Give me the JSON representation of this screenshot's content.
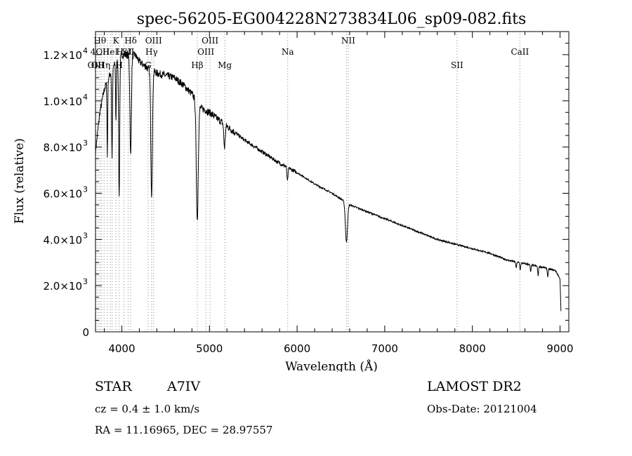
{
  "chart_data": {
    "type": "line",
    "title": "spec-56205-EG004228N273834L06_sp09-082.fits",
    "xlabel": "Wavelength (Å)",
    "ylabel": "Flux (relative)",
    "xlim": [
      3700,
      9100
    ],
    "ylim": [
      0,
      13000
    ],
    "xticks": [
      {
        "value": 4000,
        "label": "4000"
      },
      {
        "value": 5000,
        "label": "5000"
      },
      {
        "value": 6000,
        "label": "6000"
      },
      {
        "value": 7000,
        "label": "7000"
      },
      {
        "value": 8000,
        "label": "8000"
      },
      {
        "value": 9000,
        "label": "9000"
      }
    ],
    "yticks": [
      {
        "value": 0,
        "mant": "0",
        "exp": ""
      },
      {
        "value": 2000,
        "mant": "2.0×10",
        "exp": "3"
      },
      {
        "value": 4000,
        "mant": "4.0×10",
        "exp": "3"
      },
      {
        "value": 6000,
        "mant": "6.0×10",
        "exp": "3"
      },
      {
        "value": 8000,
        "mant": "8.0×10",
        "exp": "3"
      },
      {
        "value": 10000,
        "mant": "1.0×10",
        "exp": "4"
      },
      {
        "value": 12000,
        "mant": "1.2×10",
        "exp": "4"
      }
    ],
    "continuum": [
      [
        3700,
        7800
      ],
      [
        3750,
        9500
      ],
      [
        3800,
        10500
      ],
      [
        3850,
        11000
      ],
      [
        3900,
        11500
      ],
      [
        3950,
        11700
      ],
      [
        4000,
        12000
      ],
      [
        4050,
        12000
      ],
      [
        4100,
        11900
      ],
      [
        4150,
        12000
      ],
      [
        4200,
        11700
      ],
      [
        4300,
        11400
      ],
      [
        4400,
        11200
      ],
      [
        4500,
        11100
      ],
      [
        4600,
        11000
      ],
      [
        4700,
        10700
      ],
      [
        4800,
        10300
      ],
      [
        4900,
        9700
      ],
      [
        5000,
        9500
      ],
      [
        5100,
        9200
      ],
      [
        5200,
        8900
      ],
      [
        5400,
        8300
      ],
      [
        5600,
        7800
      ],
      [
        5800,
        7300
      ],
      [
        6000,
        6900
      ],
      [
        6200,
        6400
      ],
      [
        6400,
        6000
      ],
      [
        6600,
        5500
      ],
      [
        6800,
        5200
      ],
      [
        7000,
        4900
      ],
      [
        7200,
        4600
      ],
      [
        7400,
        4300
      ],
      [
        7600,
        4000
      ],
      [
        7800,
        3800
      ],
      [
        8000,
        3600
      ],
      [
        8200,
        3400
      ],
      [
        8400,
        3100
      ],
      [
        8600,
        2950
      ],
      [
        8800,
        2800
      ],
      [
        8950,
        2650
      ],
      [
        9000,
        2300
      ],
      [
        9010,
        900
      ]
    ],
    "absorption_lines": [
      {
        "center": 3835,
        "depth": 3300,
        "width": 4
      },
      {
        "center": 3889,
        "depth": 3800,
        "width": 5
      },
      {
        "center": 3933,
        "depth": 2500,
        "width": 4
      },
      {
        "center": 3970,
        "depth": 6000,
        "width": 6
      },
      {
        "center": 4101,
        "depth": 4300,
        "width": 8
      },
      {
        "center": 4340,
        "depth": 5400,
        "width": 9
      },
      {
        "center": 4861,
        "depth": 5100,
        "width": 11
      },
      {
        "center": 5172,
        "depth": 1000,
        "width": 8
      },
      {
        "center": 5890,
        "depth": 600,
        "width": 6
      },
      {
        "center": 6563,
        "depth": 1700,
        "width": 12
      },
      {
        "center": 8500,
        "depth": 250,
        "width": 5
      },
      {
        "center": 8545,
        "depth": 300,
        "width": 5
      },
      {
        "center": 8665,
        "depth": 300,
        "width": 5
      },
      {
        "center": 8750,
        "depth": 400,
        "width": 5
      },
      {
        "center": 8860,
        "depth": 350,
        "width": 5
      }
    ],
    "line_markers": [
      {
        "x": 3705,
        "label": "OIII",
        "row": 3
      },
      {
        "x": 3727,
        "label": "OII",
        "row": 3
      },
      {
        "x": 3750,
        "label": "Hθ",
        "row": 1
      },
      {
        "x": 3750,
        "label": "4OII",
        "row": 2
      },
      {
        "x": 3771,
        "label": "",
        "row": 0
      },
      {
        "x": 3798,
        "label": "Hη",
        "row": 3
      },
      {
        "x": 3835,
        "label": "",
        "row": 0
      },
      {
        "x": 3869,
        "label": "HeI",
        "row": 2
      },
      {
        "x": 3889,
        "label": "",
        "row": 0
      },
      {
        "x": 3933,
        "label": "K",
        "row": 1
      },
      {
        "x": 3970,
        "label": "H",
        "row": 3
      },
      {
        "x": 4026,
        "label": "HeI",
        "row": 2
      },
      {
        "x": 4072,
        "label": "SII",
        "row": 2
      },
      {
        "x": 4101,
        "label": "Hδ",
        "row": 1
      },
      {
        "x": 4300,
        "label": "G",
        "row": 3
      },
      {
        "x": 4340,
        "label": "Hγ",
        "row": 2
      },
      {
        "x": 4363,
        "label": "OIII",
        "row": 1
      },
      {
        "x": 4861,
        "label": "Hβ",
        "row": 3
      },
      {
        "x": 4959,
        "label": "OIII",
        "row": 2
      },
      {
        "x": 5007,
        "label": "OIII",
        "row": 1
      },
      {
        "x": 5175,
        "label": "Mg",
        "row": 3
      },
      {
        "x": 5893,
        "label": "Na",
        "row": 2
      },
      {
        "x": 6583,
        "label": "NII",
        "row": 1
      },
      {
        "x": 6563,
        "label": "",
        "row": 0
      },
      {
        "x": 7825,
        "label": "SII",
        "row": 3
      },
      {
        "x": 8542,
        "label": "CaII",
        "row": 2
      }
    ]
  },
  "info": {
    "object_class": "STAR",
    "subclass": "A7IV",
    "survey": "LAMOST DR2",
    "redshift": "cz = 0.4 ± 1.0 km/s",
    "obs_date": "Obs-Date: 20121004",
    "coords": "RA =  11.16965, DEC =  28.97557"
  }
}
